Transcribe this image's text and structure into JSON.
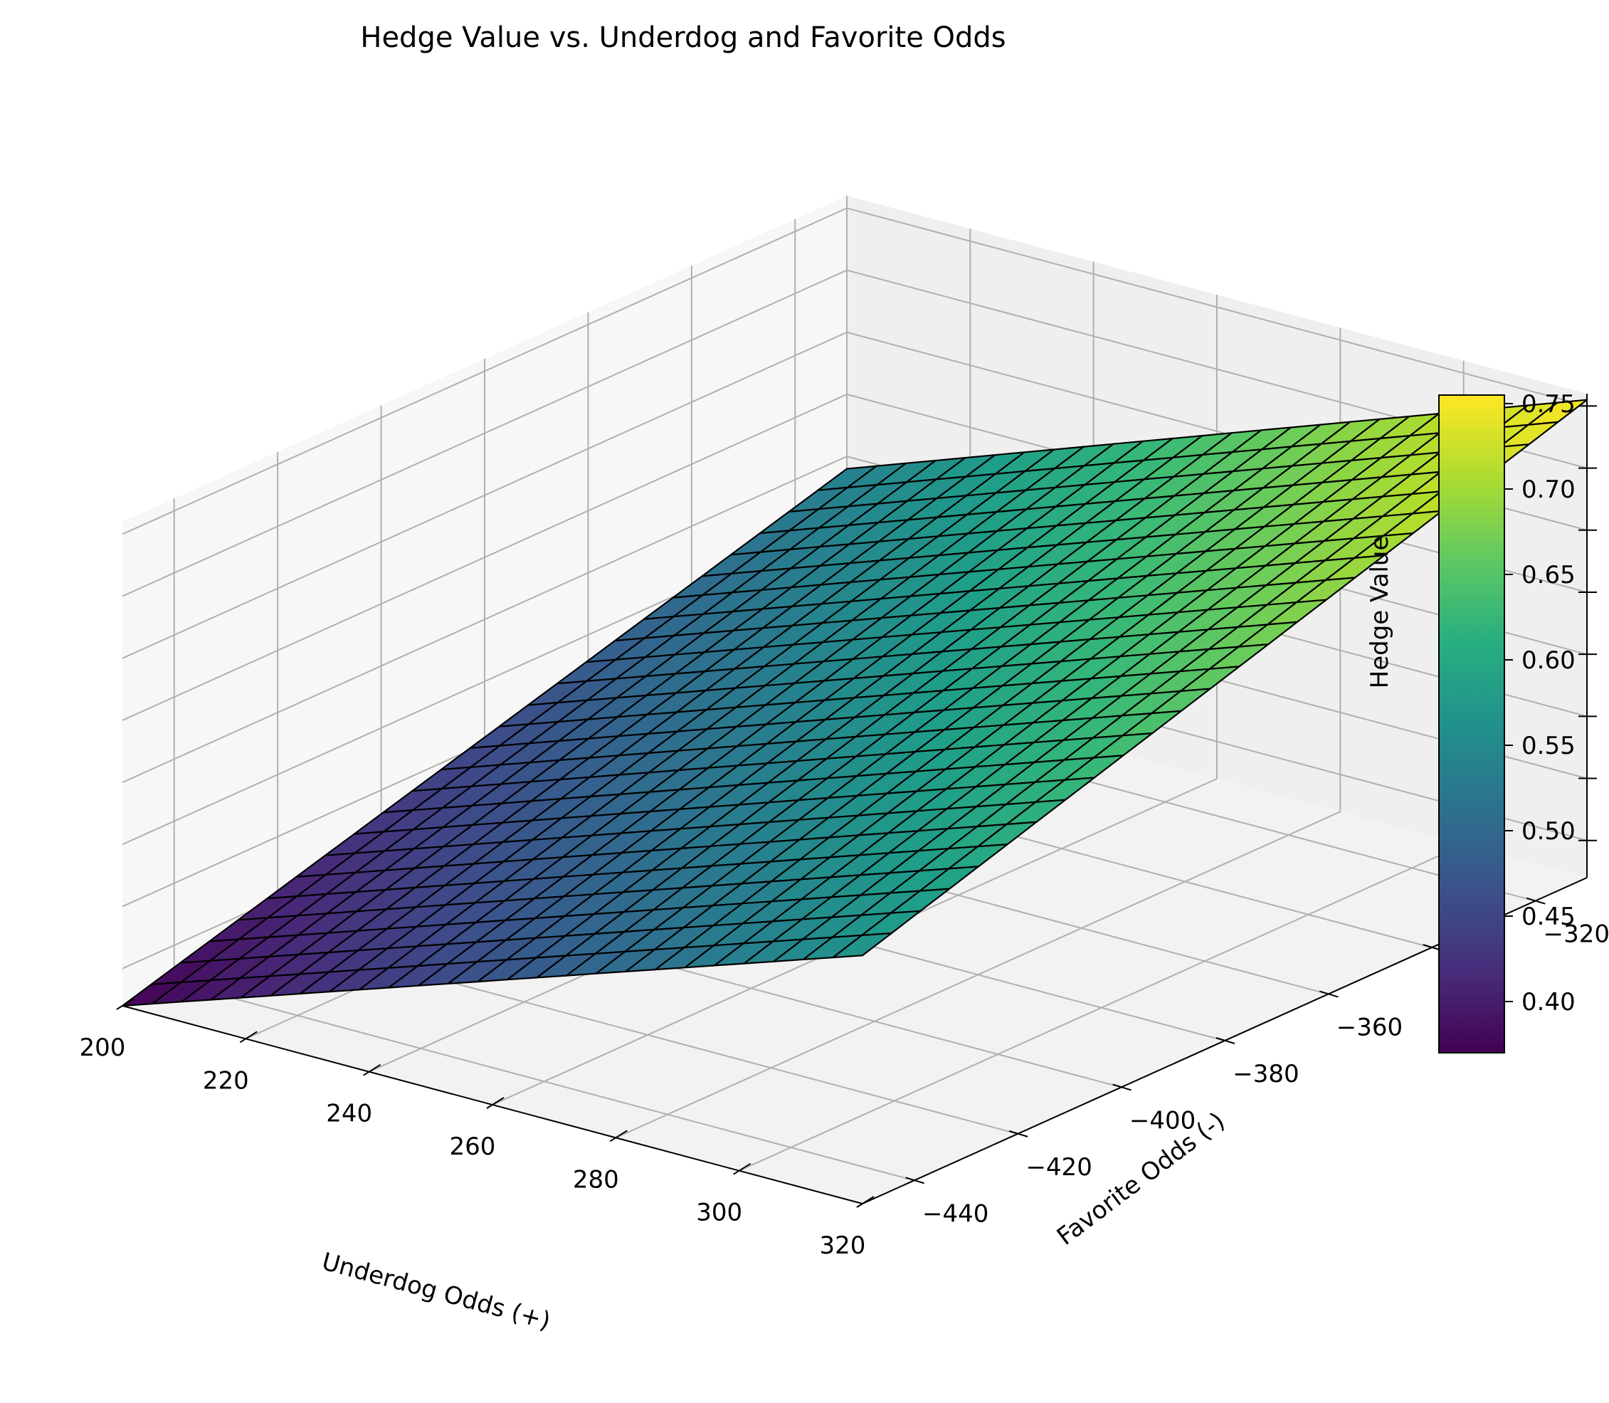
{
  "chart_data": {
    "type": "surface3d",
    "title": "Hedge Value vs. Underdog and Favorite Odds",
    "xlabel": "Underdog Odds (+)",
    "ylabel": "Favorite Odds (-)",
    "zlabel": "Hedge Value",
    "x_range": [
      200,
      320
    ],
    "y_range": [
      -450,
      -310
    ],
    "z_range": [
      0.37,
      0.76
    ],
    "x_ticks": [
      "200",
      "220",
      "240",
      "260",
      "280",
      "300",
      "320"
    ],
    "y_ticks": [
      "−320",
      "−340",
      "−360",
      "−380",
      "−400",
      "−420",
      "−440"
    ],
    "z_ticks": [
      "0.40",
      "0.45",
      "0.50",
      "0.55",
      "0.60",
      "0.65",
      "0.70",
      "0.75"
    ],
    "grid": true,
    "colormap": "viridis",
    "colorbar": {
      "range": [
        0.37,
        0.755
      ],
      "ticks": [
        "0.40",
        "0.45",
        "0.50",
        "0.55",
        "0.60",
        "0.65",
        "0.70",
        "0.75"
      ]
    },
    "surface_corners": [
      {
        "x": 200,
        "y": -450,
        "z": 0.37
      },
      {
        "x": 320,
        "y": -450,
        "z": 0.57
      },
      {
        "x": 320,
        "y": -310,
        "z": 0.755
      },
      {
        "x": 200,
        "y": -310,
        "z": 0.54
      }
    ],
    "grid_resolution": 25
  }
}
